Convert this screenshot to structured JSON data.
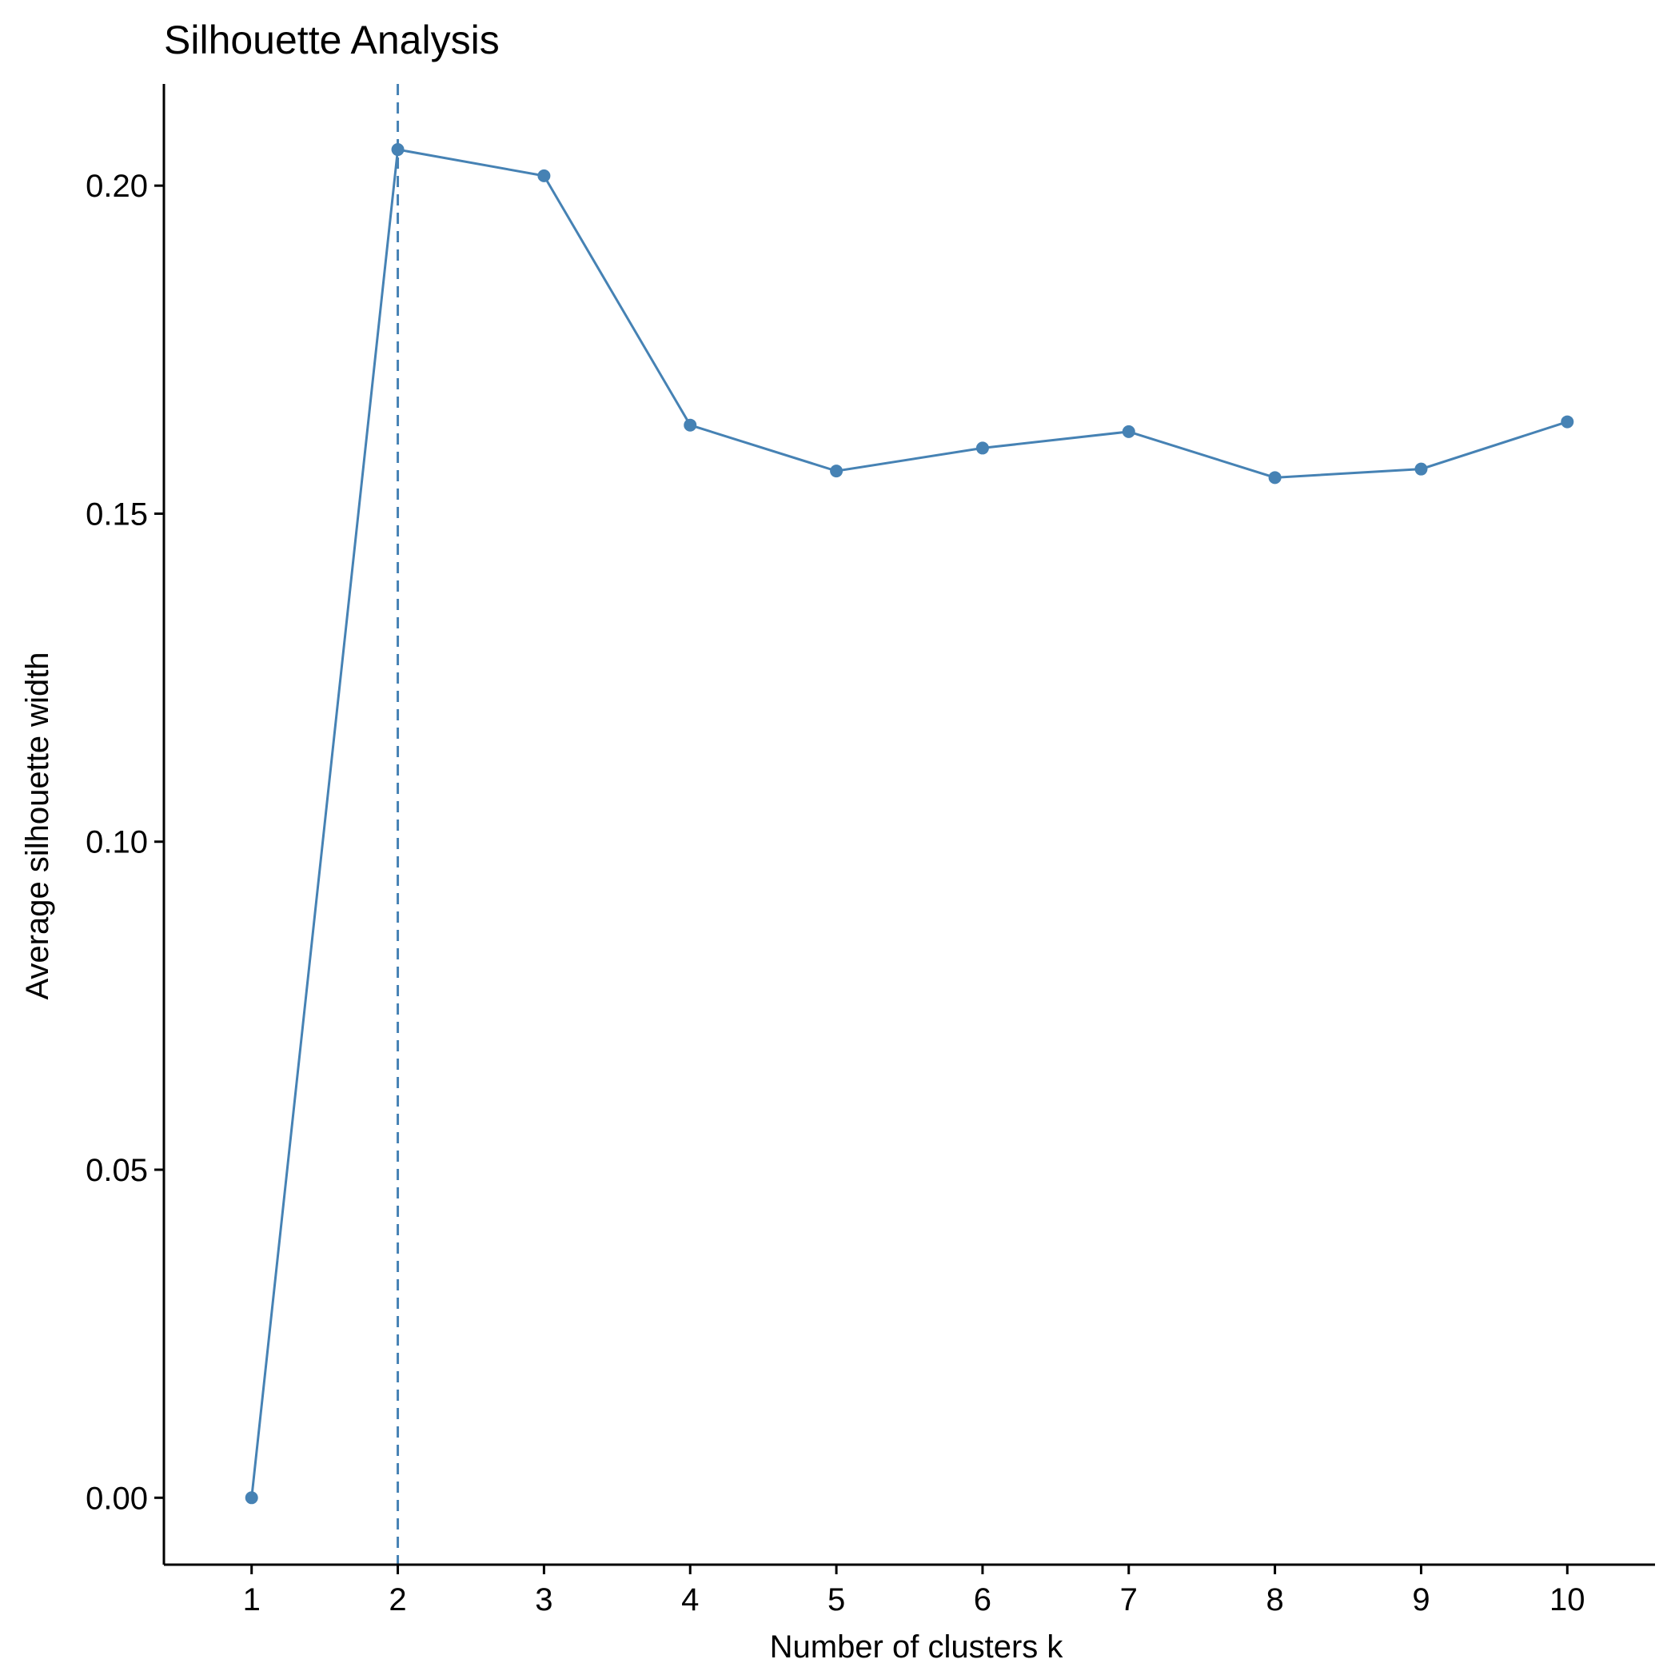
{
  "chart_data": {
    "type": "line",
    "title": "Silhouette Analysis",
    "xlabel": "Number of clusters k",
    "ylabel": "Average silhouette width",
    "x": [
      1,
      2,
      3,
      4,
      5,
      6,
      7,
      8,
      9,
      10
    ],
    "x_tick_labels": [
      "1",
      "2",
      "3",
      "4",
      "5",
      "6",
      "7",
      "8",
      "9",
      "10"
    ],
    "y_ticks": [
      0.0,
      0.05,
      0.1,
      0.15,
      0.2
    ],
    "y_tick_labels": [
      "0.00",
      "0.05",
      "0.10",
      "0.15",
      "0.20"
    ],
    "series": [
      {
        "values": [
          0.0,
          0.2055,
          0.2015,
          0.1635,
          0.1565,
          0.16,
          0.1625,
          0.1555,
          0.1568,
          0.164
        ],
        "color": "#4682B4"
      }
    ],
    "xlim": [
      0.4,
      10.6
    ],
    "ylim": [
      -0.0102,
      0.2155
    ],
    "optimal_k": 2,
    "optimal_line_style": "dashed",
    "grid": false,
    "legend": "none"
  }
}
